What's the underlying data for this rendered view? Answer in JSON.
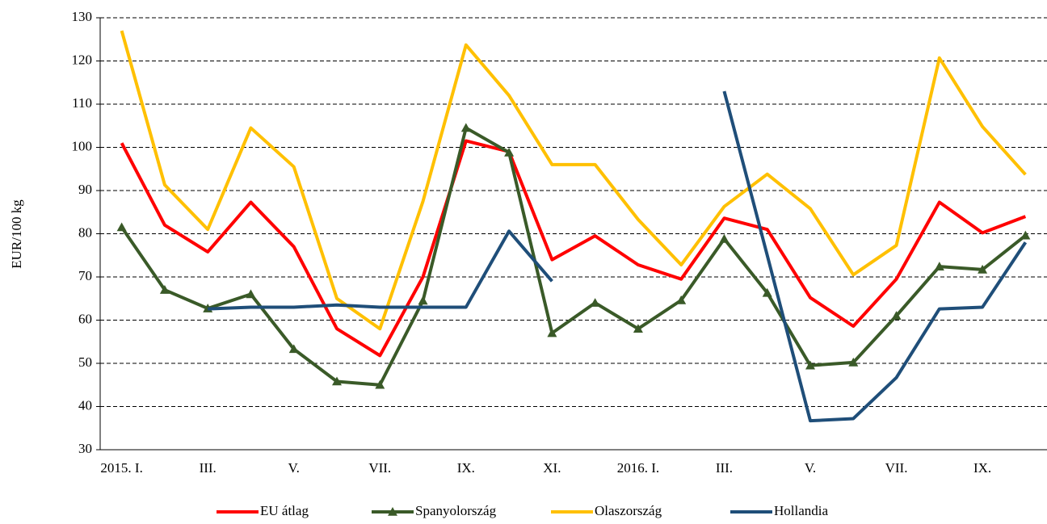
{
  "chart_data": {
    "type": "line",
    "ylabel": "EUR/100 kg",
    "categories": [
      "2015. I.",
      null,
      "III.",
      null,
      "V.",
      null,
      "VII.",
      null,
      "IX.",
      null,
      "XI.",
      null,
      "2016. I.",
      null,
      "III.",
      null,
      "V.",
      null,
      "VII.",
      null,
      "IX.",
      null
    ],
    "series": [
      {
        "name": "EU átlag",
        "color": "#ff0000",
        "values": [
          101,
          82,
          75.8,
          87.3,
          77,
          58,
          51.8,
          70,
          101.5,
          99,
          74,
          79.5,
          72.8,
          69.5,
          83.6,
          81,
          65.2,
          58.6,
          69.5,
          87.3,
          80.2,
          84
        ]
      },
      {
        "name": "Spanyolország",
        "color": "#3a5a28",
        "marker": "triangle",
        "values": [
          81.5,
          67,
          62.7,
          66,
          53.3,
          45.8,
          45,
          64.5,
          104.5,
          98.8,
          57,
          64,
          58,
          64.6,
          78.8,
          66.3,
          49.5,
          50.2,
          61,
          72.4,
          71.7,
          79.6
        ]
      },
      {
        "name": "Olaszország",
        "color": "#ffc000",
        "values": [
          127,
          91.3,
          81,
          104.5,
          95.5,
          65,
          58,
          87.5,
          123.7,
          112,
          96,
          96,
          83.3,
          72.8,
          86.3,
          93.8,
          85.8,
          70.5,
          77.3,
          120.7,
          104.8,
          93.7
        ]
      },
      {
        "name": "Hollandia",
        "color": "#1f4e79",
        "values": [
          null,
          null,
          62.6,
          63,
          63,
          63.5,
          63,
          63,
          63,
          80.6,
          69,
          null,
          null,
          null,
          113,
          75,
          36.7,
          37.2,
          46.7,
          62.6,
          63,
          78
        ]
      }
    ],
    "ylim": [
      30,
      130
    ],
    "yticks": [
      30,
      40,
      50,
      60,
      70,
      80,
      90,
      100,
      110,
      120,
      130
    ],
    "grid": true,
    "legend": "bottom"
  }
}
